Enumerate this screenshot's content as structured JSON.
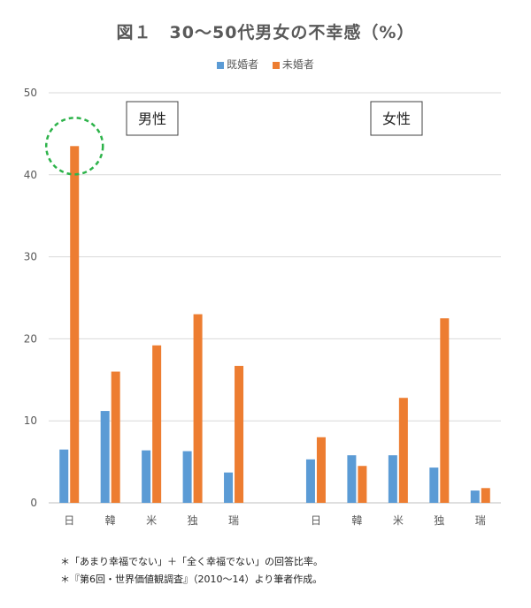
{
  "chart_data": {
    "type": "bar",
    "title": "図１　30～50代男女の不幸感（%）",
    "categories": [
      "日",
      "韓",
      "米",
      "独",
      "瑞",
      "日",
      "韓",
      "米",
      "独",
      "瑞"
    ],
    "groups": [
      {
        "label": "男性",
        "categories": [
          "日",
          "韓",
          "米",
          "独",
          "瑞"
        ]
      },
      {
        "label": "女性",
        "categories": [
          "日",
          "韓",
          "米",
          "独",
          "瑞"
        ]
      }
    ],
    "series": [
      {
        "name": "既婚者",
        "color": "#5b9bd5",
        "values": [
          6.5,
          11.2,
          6.4,
          6.3,
          3.7,
          5.3,
          5.8,
          5.8,
          4.3,
          1.5
        ]
      },
      {
        "name": "未婚者",
        "color": "#ed7d31",
        "values": [
          43.5,
          16.0,
          19.2,
          23.0,
          16.7,
          8.0,
          4.5,
          12.8,
          22.5,
          1.8
        ]
      }
    ],
    "yticks": [
      "0",
      "10",
      "20",
      "30",
      "40",
      "50"
    ],
    "ylim": [
      0,
      50
    ],
    "grid": true,
    "legend_position": "top",
    "highlight": {
      "category": "日",
      "group": "男性",
      "series": "未婚者",
      "color": "#2db34a"
    }
  },
  "footnotes": [
    "＊「あまり幸福でない」＋「全く幸福でない」の回答比率。",
    "＊『第6回・世界価値観調査』（2010～14）より筆者作成。"
  ]
}
